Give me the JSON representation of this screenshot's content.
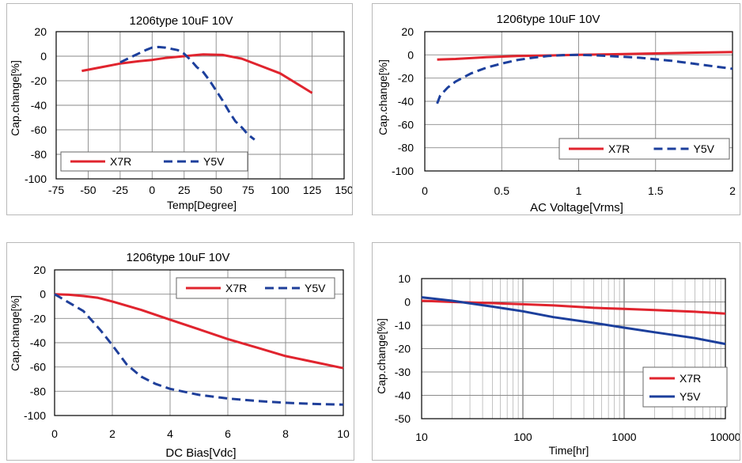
{
  "colors": {
    "x7r": "#e0242e",
    "y5v": "#1c3f9c",
    "y5v_bias": "#1f3f9a",
    "grid": "#8a8a8a",
    "axis": "#000000"
  },
  "chart_data": [
    {
      "id": "temp",
      "type": "line",
      "title": "1206type  10uF  10V",
      "xlabel": "Temp[Degree]",
      "ylabel": "Cap.change[%]",
      "xlim": [
        -75,
        150
      ],
      "ylim": [
        -100,
        20
      ],
      "xticks": [
        -75,
        -50,
        -25,
        0,
        25,
        50,
        75,
        100,
        125,
        150
      ],
      "yticks": [
        20,
        0,
        -20,
        -40,
        -60,
        -80,
        -100
      ],
      "xscale": "linear",
      "grid": true,
      "legend": "bottom",
      "series": [
        {
          "name": "X7R",
          "style": "solid",
          "color": "#e0242e",
          "x": [
            -55,
            -40,
            -25,
            -10,
            0,
            10,
            25,
            40,
            55,
            70,
            85,
            100,
            125
          ],
          "y": [
            -12,
            -9,
            -6,
            -4,
            -3,
            -1.5,
            0,
            1.5,
            1,
            -2,
            -8,
            -14,
            -30
          ]
        },
        {
          "name": "Y5V",
          "style": "dashed",
          "color": "#1c3f9c",
          "x": [
            -25,
            -15,
            -5,
            0,
            5,
            10,
            15,
            20,
            25,
            30,
            35,
            40,
            45,
            50,
            55,
            60,
            65,
            70,
            75,
            80
          ],
          "y": [
            -5,
            0,
            5,
            7,
            7.5,
            7,
            6,
            5,
            2,
            -3,
            -9,
            -13,
            -20,
            -28,
            -36,
            -45,
            -53,
            -58,
            -64,
            -68
          ]
        }
      ]
    },
    {
      "id": "ac",
      "type": "line",
      "title": "1206type  10uF  10V",
      "xlabel": "AC Voltage[Vrms]",
      "ylabel": "Cap.change[%]",
      "xlim": [
        0,
        2
      ],
      "ylim": [
        -100,
        20
      ],
      "xticks": [
        0,
        0.5,
        1,
        1.5,
        2
      ],
      "yticks": [
        20,
        0,
        -20,
        -40,
        -60,
        -80,
        -100
      ],
      "xscale": "linear",
      "grid": true,
      "legend": "bottom-right",
      "series": [
        {
          "name": "X7R",
          "style": "solid",
          "color": "#e0242e",
          "x": [
            0.08,
            0.2,
            0.4,
            0.6,
            0.8,
            1.0,
            1.2,
            1.4,
            1.6,
            1.8,
            2.0
          ],
          "y": [
            -4,
            -3.5,
            -2,
            -1,
            -0.5,
            0,
            0.5,
            1,
            1.5,
            2,
            2.5
          ]
        },
        {
          "name": "Y5V",
          "style": "dashed",
          "color": "#1c3f9c",
          "x": [
            0.08,
            0.1,
            0.15,
            0.2,
            0.3,
            0.4,
            0.5,
            0.6,
            0.7,
            0.8,
            0.9,
            1.0,
            1.1,
            1.2,
            1.4,
            1.6,
            1.8,
            2.0
          ],
          "y": [
            -42,
            -35,
            -28,
            -23,
            -16,
            -11,
            -7.5,
            -4.5,
            -2.5,
            -1,
            -0.2,
            0,
            -0.3,
            -1,
            -2.5,
            -5,
            -8.5,
            -12
          ]
        }
      ]
    },
    {
      "id": "dc",
      "type": "line",
      "title": "1206type  10uF  10V",
      "xlabel": "DC Bias[Vdc]",
      "ylabel": "Cap.change[%]",
      "xlim": [
        0,
        10
      ],
      "ylim": [
        -100,
        20
      ],
      "xticks": [
        0,
        2,
        4,
        6,
        8,
        10
      ],
      "yticks": [
        20,
        0,
        -20,
        -40,
        -60,
        -80,
        -100
      ],
      "xscale": "linear",
      "grid": true,
      "legend": "top-right",
      "series": [
        {
          "name": "X7R",
          "style": "solid",
          "color": "#e0242e",
          "x": [
            0,
            0.5,
            1,
            1.5,
            2,
            3,
            4,
            5,
            6,
            7,
            8,
            9,
            10
          ],
          "y": [
            0,
            -0.5,
            -1.5,
            -3,
            -6,
            -13,
            -21,
            -29,
            -37,
            -44,
            -51,
            -56,
            -61
          ]
        },
        {
          "name": "Y5V",
          "style": "dashed",
          "color": "#1f3f9a",
          "x": [
            0,
            0.5,
            1,
            1.3,
            1.6,
            2,
            2.5,
            3,
            3.5,
            4,
            5,
            6,
            7,
            8,
            9,
            10
          ],
          "y": [
            0,
            -7,
            -14,
            -22,
            -30,
            -42,
            -58,
            -68,
            -74,
            -78,
            -83,
            -86,
            -88,
            -89.5,
            -90.5,
            -91
          ]
        }
      ]
    },
    {
      "id": "time",
      "type": "line",
      "title": "",
      "xlabel": "Time[hr]",
      "ylabel": "Cap.change[%]",
      "xlim": [
        10,
        10000
      ],
      "ylim": [
        -50,
        10
      ],
      "xticks": [
        10,
        100,
        1000,
        10000
      ],
      "yticks": [
        10,
        0,
        -10,
        -20,
        -30,
        -40,
        -50
      ],
      "xscale": "log",
      "grid": true,
      "legend": "bottom-right",
      "series": [
        {
          "name": "X7R",
          "style": "solid",
          "color": "#e0242e",
          "x": [
            10,
            20,
            50,
            100,
            200,
            500,
            1000,
            2000,
            5000,
            10000
          ],
          "y": [
            0.5,
            0,
            -0.5,
            -1,
            -1.5,
            -2.5,
            -3,
            -3.5,
            -4.2,
            -5
          ]
        },
        {
          "name": "Y5V",
          "style": "solid",
          "color": "#1c3f9c",
          "x": [
            10,
            20,
            50,
            100,
            200,
            500,
            1000,
            2000,
            5000,
            10000
          ],
          "y": [
            2,
            0.5,
            -2,
            -4,
            -6.5,
            -9,
            -11,
            -13,
            -15.5,
            -18
          ]
        }
      ]
    }
  ]
}
